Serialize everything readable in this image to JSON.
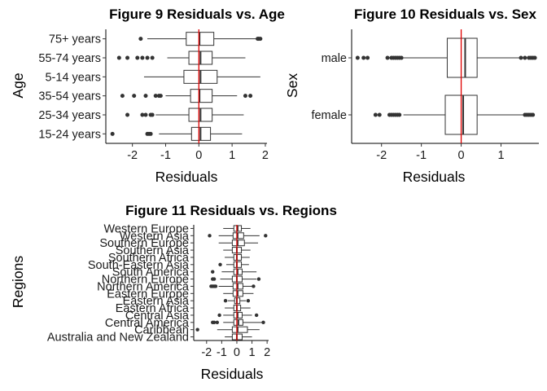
{
  "chart_data": [
    {
      "id": "fig9",
      "type": "boxplot",
      "orientation": "horizontal",
      "title": "Figure 9 Residuals vs. Age",
      "xlabel": "Residuals",
      "ylabel": "Age",
      "xlim": [
        -2.8,
        2.05
      ],
      "xticks": [
        -2,
        -1,
        0,
        1,
        2
      ],
      "xtick_labels": [
        "-2",
        "-1",
        "0",
        "1",
        "2"
      ],
      "reference_line": {
        "x": 0,
        "color": "#e00000"
      },
      "categories": [
        "15-24 years",
        "25-34 years",
        "35-54 years",
        "5-14 years",
        "55-74 years",
        "75+ years"
      ],
      "boxes": [
        {
          "category": "15-24 years",
          "whisker_low": -1.2,
          "q1": -0.22,
          "median": 0.05,
          "q3": 0.35,
          "whisker_high": 1.3,
          "outliers": [
            -2.6,
            -1.55,
            -1.5,
            -1.45
          ]
        },
        {
          "category": "25-34 years",
          "whisker_low": -1.3,
          "q1": -0.3,
          "median": 0.05,
          "q3": 0.4,
          "whisker_high": 1.35,
          "outliers": [
            -2.15,
            -1.7,
            -1.6,
            -1.45,
            -1.4
          ]
        },
        {
          "category": "35-54 years",
          "whisker_low": -1.0,
          "q1": -0.25,
          "median": 0.02,
          "q3": 0.4,
          "whisker_high": 1.15,
          "outliers": [
            -2.3,
            -1.95,
            -1.6,
            -1.3,
            -1.2,
            -1.15,
            1.4,
            1.55
          ]
        },
        {
          "category": "5-14 years",
          "whisker_low": -1.65,
          "q1": -0.45,
          "median": 0.05,
          "q3": 0.55,
          "whisker_high": 1.85,
          "outliers": []
        },
        {
          "category": "55-74 years",
          "whisker_low": -0.95,
          "q1": -0.3,
          "median": 0.05,
          "q3": 0.4,
          "whisker_high": 1.4,
          "outliers": [
            -2.4,
            -2.15,
            -1.85,
            -1.7,
            -1.55,
            -1.4
          ]
        },
        {
          "category": "75+ years",
          "whisker_low": -1.55,
          "q1": -0.38,
          "median": 0.02,
          "q3": 0.45,
          "whisker_high": 1.8,
          "outliers": [
            -1.75,
            1.77,
            1.8,
            1.85
          ]
        }
      ]
    },
    {
      "id": "fig10",
      "type": "boxplot",
      "orientation": "horizontal",
      "title": "Figure 10 Residuals vs. Sex",
      "xlabel": "Residuals",
      "ylabel": "Sex",
      "xlim": [
        -2.75,
        1.95
      ],
      "xticks": [
        -2,
        -1,
        0,
        1
      ],
      "xtick_labels": [
        "-2",
        "-1",
        "0",
        "1"
      ],
      "reference_line": {
        "x": 0,
        "color": "#e00000"
      },
      "categories": [
        "female",
        "male"
      ],
      "boxes": [
        {
          "category": "female",
          "whisker_low": -1.45,
          "q1": -0.4,
          "median": 0.05,
          "q3": 0.4,
          "whisker_high": 1.55,
          "outliers": [
            -2.15,
            -2.05,
            -1.8,
            -1.75,
            -1.7,
            -1.65,
            -1.6,
            -1.55,
            1.6,
            1.65,
            1.7,
            1.75,
            1.8
          ]
        },
        {
          "category": "male",
          "whisker_low": -1.45,
          "q1": -0.35,
          "median": 0.1,
          "q3": 0.4,
          "whisker_high": 1.45,
          "outliers": [
            -2.6,
            -2.45,
            -2.35,
            -1.85,
            -1.75,
            -1.7,
            -1.65,
            -1.6,
            -1.55,
            -1.5,
            1.5,
            1.6,
            1.7,
            1.75,
            1.8,
            1.85
          ]
        }
      ]
    },
    {
      "id": "fig11",
      "type": "boxplot",
      "orientation": "horizontal",
      "title": "Figure 11 Residuals vs. Regions",
      "xlabel": "Residuals",
      "ylabel": "Regions",
      "xlim": [
        -2.85,
        2.1
      ],
      "xticks": [
        -2,
        -1,
        0,
        1,
        2
      ],
      "xtick_labels": [
        "-2",
        "-1",
        "0",
        "1",
        "2"
      ],
      "reference_line": {
        "x": 0,
        "color": "#e00000"
      },
      "categories": [
        "Australia and New Zealand",
        "Caribbean",
        "Central America",
        "Central Asia",
        "Eastern Africa",
        "Eastern Asia",
        "Eastern Europe",
        "Northern America",
        "Northern Europe",
        "South America",
        "South-Eastern Asia",
        "Southern Africa",
        "Southern Asia",
        "Southern Europe",
        "Western Asia",
        "Western Europe"
      ],
      "boxes": [
        {
          "category": "Australia and New Zealand",
          "whisker_low": -0.8,
          "q1": -0.3,
          "median": 0.0,
          "q3": 0.35,
          "whisker_high": 1.0,
          "outliers": []
        },
        {
          "category": "Caribbean",
          "whisker_low": -1.3,
          "q1": -0.3,
          "median": 0.05,
          "q3": 0.7,
          "whisker_high": 1.5,
          "outliers": [
            -2.6
          ]
        },
        {
          "category": "Central America",
          "whisker_low": -0.9,
          "q1": -0.2,
          "median": 0.1,
          "q3": 0.4,
          "whisker_high": 1.7,
          "outliers": [
            -1.6,
            -1.5,
            -1.3,
            1.75
          ]
        },
        {
          "category": "Central Asia",
          "whisker_low": -0.9,
          "q1": -0.2,
          "median": 0.05,
          "q3": 0.35,
          "whisker_high": 1.0,
          "outliers": [
            -1.15,
            1.3
          ]
        },
        {
          "category": "Eastern Africa",
          "whisker_low": -0.8,
          "q1": -0.2,
          "median": 0.0,
          "q3": 0.25,
          "whisker_high": 0.9,
          "outliers": []
        },
        {
          "category": "Eastern Asia",
          "whisker_low": -0.6,
          "q1": -0.15,
          "median": 0.0,
          "q3": 0.2,
          "whisker_high": 0.6,
          "outliers": [
            -0.75,
            0.75
          ]
        },
        {
          "category": "Eastern Europe",
          "whisker_low": -0.9,
          "q1": -0.25,
          "median": 0.05,
          "q3": 0.4,
          "whisker_high": 1.1,
          "outliers": []
        },
        {
          "category": "Northern America",
          "whisker_low": -1.2,
          "q1": -0.25,
          "median": 0.05,
          "q3": 0.4,
          "whisker_high": 1.0,
          "outliers": [
            -1.7,
            -1.6,
            -1.5,
            -1.4,
            1.1
          ]
        },
        {
          "category": "Northern Europe",
          "whisker_low": -1.1,
          "q1": -0.3,
          "median": 0.0,
          "q3": 0.35,
          "whisker_high": 1.3,
          "outliers": [
            -1.6,
            -1.5,
            1.45
          ]
        },
        {
          "category": "South America",
          "whisker_low": -1.0,
          "q1": -0.2,
          "median": 0.05,
          "q3": 0.35,
          "whisker_high": 1.3,
          "outliers": [
            -1.6
          ]
        },
        {
          "category": "South-Eastern Asia",
          "whisker_low": -0.7,
          "q1": -0.2,
          "median": 0.0,
          "q3": 0.3,
          "whisker_high": 0.8,
          "outliers": [
            -1.1
          ]
        },
        {
          "category": "Southern Africa",
          "whisker_low": -0.8,
          "q1": -0.2,
          "median": 0.0,
          "q3": 0.3,
          "whisker_high": 0.85,
          "outliers": []
        },
        {
          "category": "Southern Asia",
          "whisker_low": -0.9,
          "q1": -0.3,
          "median": 0.0,
          "q3": 0.3,
          "whisker_high": 0.9,
          "outliers": []
        },
        {
          "category": "Southern Europe",
          "whisker_low": -1.2,
          "q1": -0.3,
          "median": 0.05,
          "q3": 0.5,
          "whisker_high": 1.4,
          "outliers": []
        },
        {
          "category": "Western Asia",
          "whisker_low": -1.2,
          "q1": -0.25,
          "median": 0.05,
          "q3": 0.45,
          "whisker_high": 1.5,
          "outliers": [
            -1.8,
            1.9
          ]
        },
        {
          "category": "Western Europe",
          "whisker_low": -0.9,
          "q1": -0.2,
          "median": 0.05,
          "q3": 0.3,
          "whisker_high": 0.9,
          "outliers": []
        }
      ]
    }
  ]
}
